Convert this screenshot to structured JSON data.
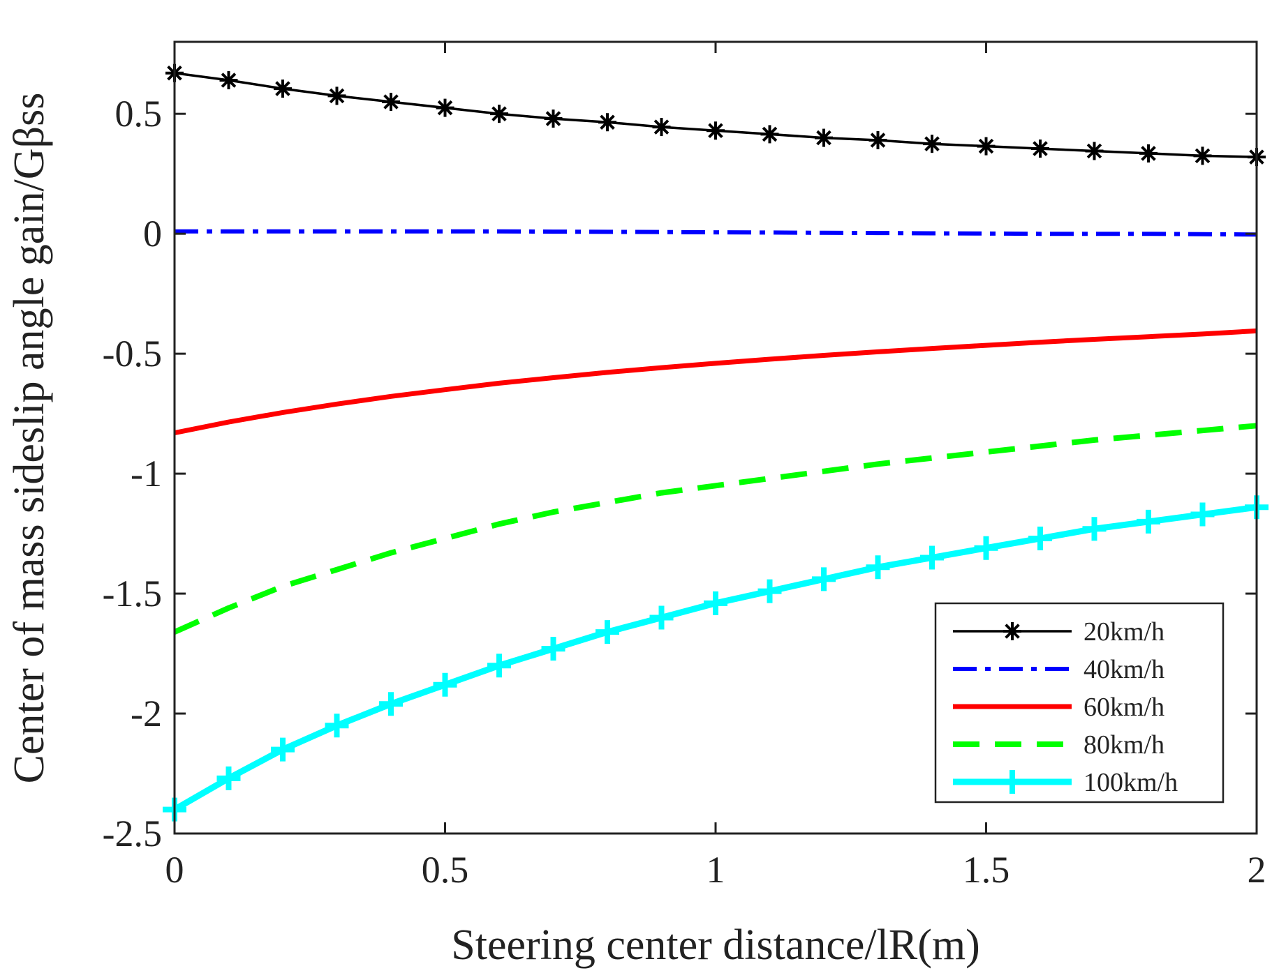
{
  "chart_data": {
    "type": "line",
    "title": "",
    "xlabel": "Steering center distance/lR(m)",
    "ylabel": "Center of mass sideslip angle gain/Gβss",
    "xlim": [
      0,
      2
    ],
    "ylim": [
      -2.5,
      0.8
    ],
    "x_ticks": [
      0,
      0.5,
      1,
      1.5,
      2
    ],
    "x_tick_labels": [
      "0",
      "0.5",
      "1",
      "1.5",
      "2"
    ],
    "y_ticks": [
      0.5,
      0,
      -0.5,
      -1,
      -1.5,
      -2,
      -2.5
    ],
    "y_tick_labels": [
      "0.5",
      "0",
      "-0.5",
      "-1",
      "-1.5",
      "-2",
      "-2.5"
    ],
    "grid": false,
    "legend_position": "bottom-right",
    "x": [
      0,
      0.1,
      0.2,
      0.3,
      0.4,
      0.5,
      0.6,
      0.7,
      0.8,
      0.9,
      1.0,
      1.1,
      1.2,
      1.3,
      1.4,
      1.5,
      1.6,
      1.7,
      1.8,
      1.9,
      2.0
    ],
    "series": [
      {
        "name": "20km/h",
        "color": "#000000",
        "line_style": "solid",
        "marker": "asterisk",
        "values": [
          0.67,
          0.64,
          0.605,
          0.575,
          0.55,
          0.525,
          0.5,
          0.48,
          0.465,
          0.445,
          0.43,
          0.415,
          0.4,
          0.39,
          0.375,
          0.365,
          0.355,
          0.345,
          0.335,
          0.325,
          0.32
        ]
      },
      {
        "name": "40km/h",
        "color": "#0000ff",
        "line_style": "dashdot",
        "marker": "none",
        "values": [
          0.01,
          0.01,
          0.01,
          0.01,
          0.01,
          0.01,
          0.01,
          0.009,
          0.008,
          0.007,
          0.006,
          0.005,
          0.004,
          0.003,
          0.002,
          0.001,
          0.0,
          0.0,
          0.0,
          -0.002,
          -0.003
        ]
      },
      {
        "name": "60km/h",
        "color": "#ff0000",
        "line_style": "solid",
        "marker": "none",
        "values": [
          -0.83,
          -0.785,
          -0.745,
          -0.71,
          -0.678,
          -0.65,
          -0.623,
          -0.6,
          -0.578,
          -0.558,
          -0.54,
          -0.523,
          -0.507,
          -0.492,
          -0.478,
          -0.465,
          -0.452,
          -0.44,
          -0.429,
          -0.418,
          -0.405
        ]
      },
      {
        "name": "80km/h",
        "color": "#00ff00",
        "line_style": "dashed",
        "marker": "none",
        "values": [
          -1.66,
          -1.56,
          -1.47,
          -1.4,
          -1.33,
          -1.27,
          -1.21,
          -1.16,
          -1.12,
          -1.08,
          -1.05,
          -1.02,
          -0.99,
          -0.96,
          -0.935,
          -0.91,
          -0.885,
          -0.86,
          -0.84,
          -0.82,
          -0.8
        ]
      },
      {
        "name": "100km/h",
        "color": "#00ffff",
        "line_style": "solid",
        "marker": "plus",
        "values": [
          -2.4,
          -2.27,
          -2.15,
          -2.05,
          -1.96,
          -1.88,
          -1.8,
          -1.73,
          -1.66,
          -1.6,
          -1.54,
          -1.49,
          -1.44,
          -1.39,
          -1.35,
          -1.31,
          -1.27,
          -1.23,
          -1.2,
          -1.17,
          -1.14
        ]
      }
    ]
  }
}
